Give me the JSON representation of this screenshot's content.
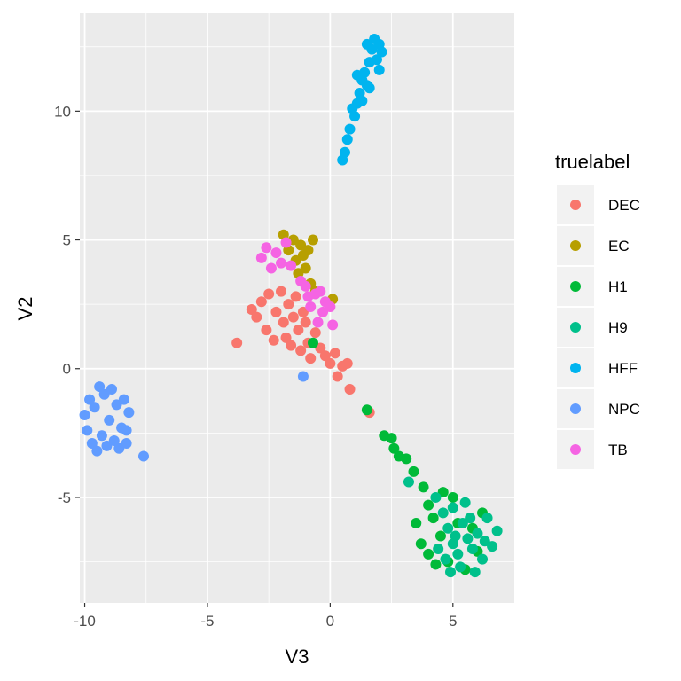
{
  "chart_data": {
    "type": "scatter",
    "xlabel": "V3",
    "ylabel": "V2",
    "xlim": [
      -10.2,
      7.5
    ],
    "ylim": [
      -9.1,
      13.8
    ],
    "x_ticks": [
      -10,
      -5,
      0,
      5
    ],
    "x_tick_labels": [
      "-10",
      "-5",
      "0",
      "5"
    ],
    "y_ticks": [
      -5,
      0,
      5,
      10
    ],
    "y_tick_labels": [
      "-5",
      "0",
      "5",
      "10"
    ],
    "grid": true,
    "legend": {
      "title": "truelabel",
      "placement": "right"
    },
    "series": [
      {
        "name": "DEC",
        "color": "#F8766D",
        "points": [
          [
            -3.8,
            1.0
          ],
          [
            -3.2,
            2.3
          ],
          [
            -3.0,
            2.0
          ],
          [
            -2.8,
            2.6
          ],
          [
            -2.6,
            1.5
          ],
          [
            -2.5,
            2.9
          ],
          [
            -2.3,
            1.1
          ],
          [
            -2.2,
            2.2
          ],
          [
            -2.0,
            3.0
          ],
          [
            -1.9,
            1.8
          ],
          [
            -1.8,
            1.2
          ],
          [
            -1.7,
            2.5
          ],
          [
            -1.6,
            0.9
          ],
          [
            -1.5,
            2.0
          ],
          [
            -1.4,
            2.8
          ],
          [
            -1.3,
            1.5
          ],
          [
            -1.2,
            0.7
          ],
          [
            -1.1,
            2.2
          ],
          [
            -1.0,
            1.8
          ],
          [
            -0.9,
            1.0
          ],
          [
            -0.8,
            0.4
          ],
          [
            -0.6,
            1.4
          ],
          [
            -0.4,
            0.8
          ],
          [
            -0.2,
            0.5
          ],
          [
            0.0,
            0.2
          ],
          [
            0.2,
            0.6
          ],
          [
            0.3,
            -0.3
          ],
          [
            0.5,
            0.1
          ],
          [
            0.7,
            0.2
          ],
          [
            0.8,
            -0.8
          ],
          [
            1.6,
            -1.7
          ]
        ]
      },
      {
        "name": "EC",
        "color": "#B79F00",
        "points": [
          [
            -1.9,
            5.2
          ],
          [
            -1.7,
            4.6
          ],
          [
            -1.5,
            5.0
          ],
          [
            -1.4,
            4.2
          ],
          [
            -1.3,
            3.7
          ],
          [
            -1.2,
            4.8
          ],
          [
            -1.1,
            4.4
          ],
          [
            -1.0,
            3.9
          ],
          [
            -0.9,
            4.6
          ],
          [
            -0.8,
            3.3
          ],
          [
            -0.7,
            5.0
          ],
          [
            -0.6,
            3.0
          ],
          [
            0.1,
            2.7
          ]
        ]
      },
      {
        "name": "H1",
        "color": "#00BA38",
        "points": [
          [
            -0.7,
            1.0
          ],
          [
            1.5,
            -1.6
          ],
          [
            2.2,
            -2.6
          ],
          [
            2.5,
            -2.7
          ],
          [
            2.6,
            -3.1
          ],
          [
            2.8,
            -3.4
          ],
          [
            3.1,
            -3.5
          ],
          [
            3.4,
            -4.0
          ],
          [
            3.8,
            -4.6
          ],
          [
            4.0,
            -5.3
          ],
          [
            3.5,
            -6.0
          ],
          [
            3.7,
            -6.8
          ],
          [
            4.0,
            -7.2
          ],
          [
            4.2,
            -5.8
          ],
          [
            4.5,
            -6.5
          ],
          [
            4.8,
            -7.5
          ],
          [
            5.0,
            -5.0
          ],
          [
            5.5,
            -7.8
          ],
          [
            5.8,
            -6.2
          ],
          [
            6.0,
            -7.1
          ],
          [
            6.2,
            -5.6
          ],
          [
            4.3,
            -7.6
          ],
          [
            5.2,
            -6.0
          ],
          [
            4.6,
            -4.8
          ]
        ]
      },
      {
        "name": "H9",
        "color": "#00C08B",
        "points": [
          [
            3.2,
            -4.4
          ],
          [
            4.3,
            -5.0
          ],
          [
            4.6,
            -5.6
          ],
          [
            4.8,
            -6.2
          ],
          [
            5.0,
            -6.8
          ],
          [
            5.2,
            -7.2
          ],
          [
            5.4,
            -6.0
          ],
          [
            5.6,
            -6.6
          ],
          [
            5.8,
            -7.0
          ],
          [
            6.0,
            -6.4
          ],
          [
            6.2,
            -7.4
          ],
          [
            6.4,
            -5.8
          ],
          [
            6.6,
            -6.9
          ],
          [
            6.8,
            -6.3
          ],
          [
            5.0,
            -5.4
          ],
          [
            5.5,
            -5.2
          ],
          [
            4.4,
            -7.0
          ],
          [
            4.7,
            -7.4
          ],
          [
            5.3,
            -7.7
          ],
          [
            5.9,
            -7.9
          ],
          [
            6.3,
            -6.7
          ],
          [
            5.1,
            -6.5
          ],
          [
            5.7,
            -5.8
          ],
          [
            4.9,
            -7.9
          ]
        ]
      },
      {
        "name": "HFF",
        "color": "#00B4EF",
        "points": [
          [
            0.5,
            8.1
          ],
          [
            0.6,
            8.4
          ],
          [
            0.7,
            8.9
          ],
          [
            0.8,
            9.3
          ],
          [
            1.0,
            9.8
          ],
          [
            1.1,
            10.3
          ],
          [
            1.2,
            10.7
          ],
          [
            1.3,
            11.2
          ],
          [
            1.4,
            11.5
          ],
          [
            1.5,
            11.0
          ],
          [
            1.6,
            11.9
          ],
          [
            1.7,
            12.4
          ],
          [
            1.8,
            12.8
          ],
          [
            1.9,
            12.0
          ],
          [
            2.0,
            11.6
          ],
          [
            2.1,
            12.3
          ],
          [
            1.1,
            11.4
          ],
          [
            1.3,
            10.4
          ],
          [
            0.9,
            10.1
          ],
          [
            1.6,
            10.9
          ],
          [
            1.5,
            12.6
          ],
          [
            2.0,
            12.6
          ]
        ]
      },
      {
        "name": "NPC",
        "color": "#619CFF",
        "points": [
          [
            -10.0,
            -1.8
          ],
          [
            -9.9,
            -2.4
          ],
          [
            -9.8,
            -1.2
          ],
          [
            -9.7,
            -2.9
          ],
          [
            -9.6,
            -1.5
          ],
          [
            -9.5,
            -3.2
          ],
          [
            -9.4,
            -0.7
          ],
          [
            -9.3,
            -2.6
          ],
          [
            -9.2,
            -1.0
          ],
          [
            -9.1,
            -3.0
          ],
          [
            -9.0,
            -2.0
          ],
          [
            -8.9,
            -0.8
          ],
          [
            -8.8,
            -2.8
          ],
          [
            -8.7,
            -1.4
          ],
          [
            -8.6,
            -3.1
          ],
          [
            -8.5,
            -2.3
          ],
          [
            -8.4,
            -1.2
          ],
          [
            -8.3,
            -2.9
          ],
          [
            -8.2,
            -1.7
          ],
          [
            -8.3,
            -2.4
          ],
          [
            -7.6,
            -3.4
          ],
          [
            -1.1,
            -0.3
          ]
        ]
      },
      {
        "name": "TB",
        "color": "#F564E3",
        "points": [
          [
            -2.8,
            4.3
          ],
          [
            -2.6,
            4.7
          ],
          [
            -2.4,
            3.9
          ],
          [
            -2.2,
            4.5
          ],
          [
            -2.0,
            4.1
          ],
          [
            -1.8,
            4.9
          ],
          [
            -1.6,
            4.0
          ],
          [
            -1.2,
            3.4
          ],
          [
            -1.0,
            3.2
          ],
          [
            -0.9,
            2.8
          ],
          [
            -0.8,
            2.4
          ],
          [
            -0.6,
            2.9
          ],
          [
            -0.4,
            3.0
          ],
          [
            -0.2,
            2.6
          ],
          [
            0.0,
            2.4
          ],
          [
            -0.5,
            1.8
          ],
          [
            -0.3,
            2.2
          ],
          [
            0.1,
            1.7
          ]
        ]
      }
    ]
  }
}
